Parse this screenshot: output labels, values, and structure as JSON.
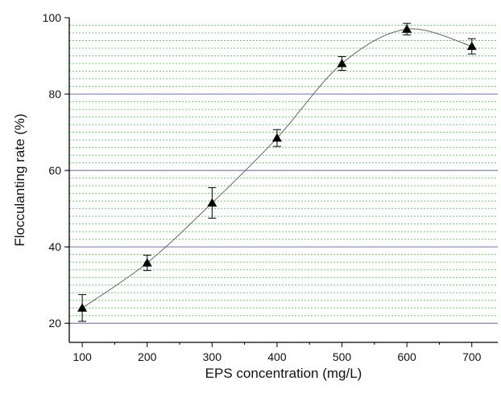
{
  "chart_data": {
    "type": "scatter",
    "xlabel": "EPS concentration (mg/L)",
    "ylabel": "Flocculanting rate (%)",
    "xlim": [
      80,
      740
    ],
    "ylim": [
      15,
      100
    ],
    "x_ticks": [
      100,
      200,
      300,
      400,
      500,
      600,
      700
    ],
    "y_ticks": [
      20,
      40,
      60,
      80,
      100
    ],
    "grid": {
      "major": "horizontal",
      "major_color": "#7f7fc0",
      "minor": "horizontal dashed",
      "minor_color": "#66cc66",
      "minor_step": 2
    },
    "marker": "triangle",
    "marker_color": "#000000",
    "curve": "smooth fit through points",
    "curve_color": "#666666",
    "series": [
      {
        "x": [
          100,
          200,
          300,
          400,
          500,
          600,
          700
        ],
        "y": [
          24,
          35.8,
          51.5,
          68.5,
          88,
          97,
          92.5
        ],
        "error": [
          3.5,
          2,
          4,
          2.2,
          1.8,
          1.5,
          2
        ]
      }
    ]
  }
}
